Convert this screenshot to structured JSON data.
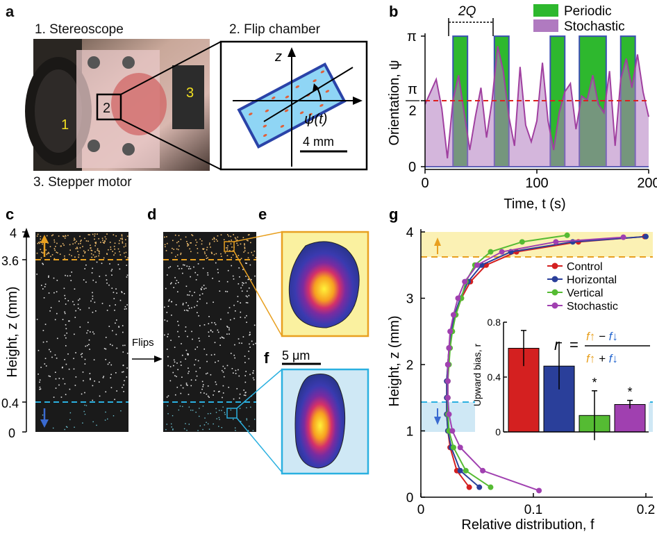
{
  "panels": {
    "a": {
      "label": "a",
      "stereoscope": "1. Stereoscope",
      "flip_chamber": "2. Flip chamber",
      "stepper_motor": "3. Stepper motor",
      "photo_marks": [
        "1",
        "2",
        "3"
      ],
      "axis_z": "z",
      "angle_label": "ψ(t)",
      "scale_bar": "4 mm"
    },
    "b": {
      "label": "b",
      "bracket_label": "2Q",
      "legend": [
        "Periodic",
        "Stochastic"
      ],
      "ylabel": "Orientation, ψ",
      "xlabel": "Time, t (s)",
      "yticks": [
        "0",
        "π/2",
        "π"
      ],
      "xticks": [
        "0",
        "100",
        "200"
      ]
    },
    "c": {
      "label": "c",
      "yticks": [
        "0",
        "0.4",
        "3.6",
        "4"
      ],
      "ylabel": "Height, z (mm)"
    },
    "d": {
      "label": "d",
      "arrow_label": "Flips"
    },
    "e": {
      "label": "e"
    },
    "f": {
      "label": "f",
      "scale_bar": "5 μm"
    },
    "g": {
      "label": "g",
      "ylabel": "Height, z (mm)",
      "xlabel": "Relative distribution, f",
      "xticks": [
        "0",
        "0.1",
        "0.2"
      ],
      "yticks": [
        "0",
        "1",
        "2",
        "3",
        "4"
      ],
      "inset_ylabel": "Upward bias, r",
      "inset_yticks": [
        "0",
        "0.4",
        "0.8"
      ],
      "formula_r": "r",
      "formula_eq": "=",
      "formula_num": "f↑ − f↓",
      "formula_den": "f↑ + f↓",
      "asterisk": "*"
    }
  },
  "colors": {
    "periodic": "#2eb82e",
    "stochastic": "#a040a0",
    "control": "#d42020",
    "horizontal": "#2a3f9a",
    "vertical": "#55bb33",
    "stoch_line": "#a040b0",
    "orange": "#e8a020",
    "cyan": "#2ab0e0"
  },
  "chart_data": [
    {
      "type": "line",
      "title": "",
      "xlabel": "Time, t (s)",
      "ylabel": "Orientation, ψ",
      "xlim": [
        0,
        200
      ],
      "ylim": [
        0,
        3.1416
      ],
      "series": [
        {
          "name": "Periodic",
          "x": [
            0,
            12,
            12,
            25,
            25,
            38,
            38,
            62,
            62,
            75,
            75,
            88,
            88,
            112,
            112,
            125,
            125,
            138,
            138,
            162,
            162,
            175,
            175,
            188,
            188,
            200
          ],
          "y": [
            0,
            0,
            0,
            0,
            3.14,
            3.14,
            0,
            0,
            3.14,
            3.14,
            0,
            0,
            0,
            0,
            3.14,
            3.14,
            0,
            0,
            3.14,
            3.14,
            0,
            0,
            3.14,
            3.14,
            0,
            0
          ]
        },
        {
          "name": "Stochastic",
          "x": [
            0,
            5,
            10,
            15,
            20,
            25,
            30,
            35,
            40,
            45,
            50,
            55,
            60,
            65,
            70,
            75,
            80,
            85,
            90,
            95,
            100,
            105,
            110,
            115,
            120,
            125,
            130,
            135,
            140,
            145,
            150,
            155,
            160,
            165,
            170,
            175,
            180,
            185,
            190,
            195,
            200
          ],
          "y": [
            1.5,
            1.8,
            2.1,
            1.4,
            0.2,
            1.6,
            2.2,
            1.3,
            0.4,
            1.2,
            1.9,
            0.7,
            1.6,
            2.9,
            2.3,
            1.2,
            0.5,
            2.4,
            1.0,
            0.6,
            1.1,
            2.5,
            1.1,
            0.4,
            1.3,
            1.8,
            2.0,
            0.9,
            1.7,
            1.6,
            2.2,
            1.5,
            1.3,
            2.3,
            0.5,
            2.1,
            2.6,
            1.9,
            2.7,
            1.8,
            1.2
          ]
        }
      ],
      "grid": false,
      "legend_placement": "top-right"
    },
    {
      "type": "line",
      "title": "",
      "xlabel": "Relative distribution, f",
      "ylabel": "Height, z (mm)",
      "xlim": [
        0,
        0.2
      ],
      "ylim": [
        0,
        4
      ],
      "series": [
        {
          "name": "Control",
          "x": [
            0.043,
            0.032,
            0.026,
            0.024,
            0.023,
            0.023,
            0.023,
            0.024,
            0.025,
            0.027,
            0.031,
            0.036,
            0.044,
            0.058,
            0.085,
            0.14,
            0.199
          ],
          "y": [
            0.15,
            0.4,
            0.75,
            1.0,
            1.25,
            1.5,
            1.75,
            2.0,
            2.25,
            2.5,
            2.75,
            3.0,
            3.25,
            3.5,
            3.7,
            3.85,
            3.93
          ]
        },
        {
          "name": "Horizontal",
          "x": [
            0.052,
            0.035,
            0.027,
            0.024,
            0.023,
            0.023,
            0.023,
            0.024,
            0.025,
            0.027,
            0.03,
            0.035,
            0.042,
            0.054,
            0.08,
            0.135,
            0.2
          ],
          "y": [
            0.15,
            0.4,
            0.75,
            1.0,
            1.25,
            1.5,
            1.75,
            2.0,
            2.25,
            2.5,
            2.75,
            3.0,
            3.25,
            3.5,
            3.7,
            3.85,
            3.93
          ]
        },
        {
          "name": "Vertical",
          "x": [
            0.062,
            0.04,
            0.029,
            0.025,
            0.024,
            0.024,
            0.024,
            0.025,
            0.026,
            0.028,
            0.031,
            0.036,
            0.04,
            0.048,
            0.062,
            0.09,
            0.13
          ],
          "y": [
            0.15,
            0.4,
            0.75,
            1.0,
            1.25,
            1.5,
            1.75,
            2.0,
            2.25,
            2.5,
            2.75,
            3.0,
            3.25,
            3.5,
            3.7,
            3.85,
            3.95
          ]
        },
        {
          "name": "Stochastic",
          "x": [
            0.105,
            0.055,
            0.035,
            0.028,
            0.025,
            0.024,
            0.024,
            0.024,
            0.025,
            0.026,
            0.029,
            0.033,
            0.039,
            0.05,
            0.072,
            0.12,
            0.18
          ],
          "y": [
            0.1,
            0.4,
            0.75,
            1.0,
            1.25,
            1.5,
            1.75,
            2.0,
            2.25,
            2.5,
            2.75,
            3.0,
            3.25,
            3.5,
            3.7,
            3.85,
            3.92
          ]
        }
      ],
      "legend_placement": "top-right"
    },
    {
      "type": "bar",
      "title": "",
      "ylabel": "Upward bias, r",
      "ylim": [
        0,
        0.8
      ],
      "categories": [
        "Control",
        "Horizontal",
        "Vertical",
        "Stochastic"
      ],
      "values": [
        0.61,
        0.48,
        0.12,
        0.2
      ],
      "errors": [
        0.13,
        0.17,
        0.18,
        0.03
      ]
    }
  ]
}
